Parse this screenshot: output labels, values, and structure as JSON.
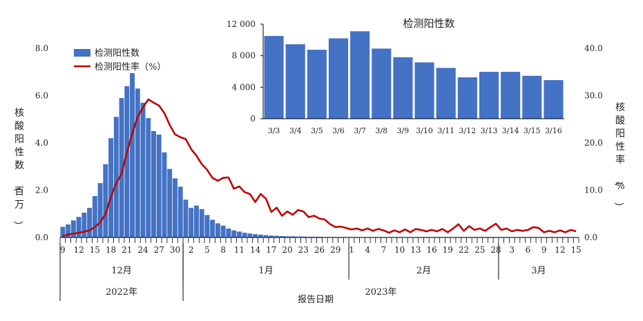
{
  "chart_data": [
    {
      "type": "bar+line",
      "left_ylabel": "核酸阳性数（百万）",
      "right_ylabel": "核酸阳性率（%）",
      "left_ylim": [
        0,
        8.0
      ],
      "left_yticks": [
        "0.0",
        "2.0",
        "4.0",
        "6.0",
        "8.0"
      ],
      "right_ylim": [
        0,
        40.0
      ],
      "right_yticks": [
        "0.0",
        "10.0",
        "20.0",
        "30.0",
        "40.0"
      ],
      "xlabel": "报告日期",
      "legend": {
        "placement": "top-left",
        "bar_label": "检测阳性数",
        "line_label": "检测阳性率（%）"
      },
      "x_tick_labels": [
        "9",
        "12",
        "15",
        "18",
        "21",
        "24",
        "27",
        "30",
        "2",
        "5",
        "8",
        "11",
        "14",
        "17",
        "20",
        "23",
        "26",
        "29",
        "1",
        "4",
        "7",
        "10",
        "13",
        "16",
        "19",
        "22",
        "25",
        "28",
        "3",
        "6",
        "9",
        "12",
        "15"
      ],
      "month_labels": [
        {
          "label": "12月",
          "start_day": 0,
          "end_day": 22
        },
        {
          "label": "1月",
          "start_day": 23,
          "end_day": 53
        },
        {
          "label": "2月",
          "start_day": 54,
          "end_day": 81
        },
        {
          "label": "3月",
          "start_day": 82,
          "end_day": 96
        }
      ],
      "year_labels": [
        {
          "label": "2022年",
          "start_day": 0,
          "end_day": 22
        },
        {
          "label": "2023年",
          "start_day": 23,
          "end_day": 96
        }
      ],
      "series": [
        {
          "name": "检测阳性数",
          "kind": "bar",
          "color": "#4472C4",
          "axis": "left",
          "values": [
            0.45,
            0.55,
            0.72,
            0.87,
            1.05,
            1.25,
            1.75,
            2.3,
            3.1,
            4.2,
            5.1,
            5.9,
            6.4,
            6.95,
            6.3,
            5.7,
            5.05,
            4.5,
            4.35,
            3.6,
            2.9,
            2.5,
            2.15,
            1.6,
            1.25,
            1.35,
            1.2,
            0.95,
            0.75,
            0.6,
            0.5,
            0.38,
            0.3,
            0.25,
            0.2,
            0.17,
            0.14,
            0.12,
            0.1,
            0.08,
            0.07,
            0.06,
            0.05,
            0.05,
            0.04,
            0.04,
            0.03,
            0.03,
            0.03,
            0.02,
            0.02,
            0.02,
            0.02,
            0.02,
            0.02,
            0.02,
            0.02,
            0.02,
            0.02,
            0.02,
            0.02,
            0.02,
            0.02,
            0.02,
            0.02,
            0.02,
            0.02,
            0.02,
            0.02,
            0.02,
            0.02,
            0.02,
            0.02,
            0.02,
            0.02,
            0.02,
            0.02,
            0.02,
            0.02,
            0.02,
            0.02,
            0.02,
            0.02,
            0.02,
            0.02,
            0.02,
            0.02,
            0.02,
            0.02,
            0.02,
            0.02,
            0.02,
            0.02,
            0.02,
            0.02,
            0.02,
            0.02
          ]
        },
        {
          "name": "检测阳性率（%）",
          "kind": "line",
          "color": "#C00000",
          "axis": "right",
          "values": [
            0.3,
            0.6,
            0.8,
            1.0,
            1.2,
            1.5,
            2.2,
            3.2,
            5.0,
            8.5,
            11.5,
            13.5,
            18.0,
            22.0,
            25.5,
            27.5,
            29.2,
            28.5,
            27.9,
            26.3,
            23.8,
            21.8,
            21.2,
            20.8,
            18.7,
            17.3,
            15.5,
            14.3,
            12.6,
            12.0,
            12.6,
            12.7,
            10.3,
            10.8,
            9.6,
            9.2,
            7.5,
            9.2,
            8.2,
            5.4,
            6.3,
            4.6,
            5.5,
            4.8,
            5.8,
            5.5,
            4.3,
            4.6,
            4.0,
            3.8,
            2.8,
            2.2,
            2.3,
            2.0,
            1.7,
            1.9,
            1.5,
            1.9,
            1.4,
            1.8,
            1.5,
            1.0,
            1.5,
            1.1,
            1.7,
            1.1,
            1.8,
            1.6,
            1.3,
            1.6,
            1.3,
            1.8,
            1.1,
            1.9,
            2.8,
            1.4,
            2.4,
            1.6,
            1.9,
            1.4,
            2.2,
            2.9,
            1.6,
            1.9,
            1.3,
            1.6,
            1.4,
            1.6,
            2.2,
            2.0,
            1.1,
            1.4,
            1.1,
            1.5,
            1.1,
            1.6,
            1.3
          ]
        }
      ]
    },
    {
      "type": "bar",
      "title": "检测阳性数",
      "categories": [
        "3/3",
        "3/4",
        "3/5",
        "3/6",
        "3/7",
        "3/8",
        "3/9",
        "3/10",
        "3/11",
        "3/12",
        "3/13",
        "3/14",
        "3/15",
        "3/16"
      ],
      "values": [
        10500,
        9450,
        8750,
        10200,
        11100,
        8900,
        7800,
        7150,
        6450,
        5250,
        5950,
        5950,
        5450,
        4900
      ],
      "ylim": [
        0,
        12000
      ],
      "yticks": [
        "0",
        "4 000",
        "8 000",
        "12 000"
      ],
      "color": "#4472C4"
    }
  ]
}
